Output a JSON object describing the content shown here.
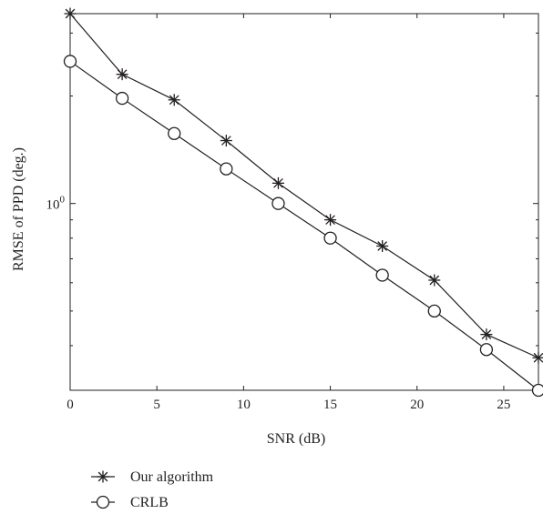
{
  "chart_data": {
    "type": "line",
    "xlabel": "SNR (dB)",
    "ylabel": "RMSE of PPD (deg.)",
    "xlim": [
      0,
      27
    ],
    "ylim": [
      0.3,
      3.4
    ],
    "yscale": "log",
    "grid": false,
    "legend_position": "bottom",
    "x": [
      0,
      3,
      6,
      9,
      12,
      15,
      18,
      21,
      24,
      27
    ],
    "x_ticks": [
      {
        "value": 0,
        "label": "0"
      },
      {
        "value": 5,
        "label": "5"
      },
      {
        "value": 10,
        "label": "10"
      },
      {
        "value": 15,
        "label": "15"
      },
      {
        "value": 20,
        "label": "20"
      },
      {
        "value": 25,
        "label": "25"
      }
    ],
    "y_ticks": [
      {
        "value": 1,
        "label_base": "10",
        "label_exp": "0"
      }
    ],
    "series": [
      {
        "name": "Our algorithm",
        "marker": "asterisk",
        "color": "#231f20",
        "values": [
          3.4,
          2.3,
          1.95,
          1.5,
          1.14,
          0.9,
          0.76,
          0.61,
          0.43,
          0.37
        ]
      },
      {
        "name": "CRLB",
        "marker": "circle",
        "color": "#231f20",
        "values": [
          2.5,
          1.97,
          1.57,
          1.25,
          1.0,
          0.8,
          0.63,
          0.5,
          0.39,
          0.3
        ]
      }
    ]
  }
}
